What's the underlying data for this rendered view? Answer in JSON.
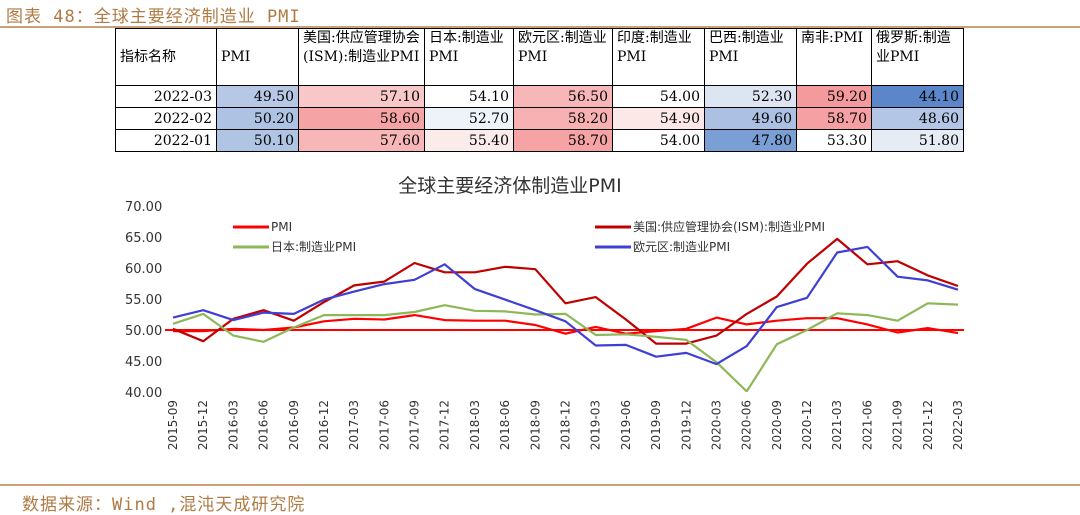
{
  "figure": {
    "title": "图表 48：全球主要经济制造业 PMI",
    "source": "数据来源：Wind ,混沌天成研究院"
  },
  "table": {
    "headers": [
      "指标名称",
      "PMI",
      "美国:供应管理协会(ISM):制造业PMI",
      "日本:制造业PMI",
      "欧元区:制造业PMI",
      "印度:制造业PMI",
      "巴西:制造业PMI",
      "南非:PMI",
      "俄罗斯:制造业PMI"
    ],
    "rows": [
      {
        "date": "2022-03",
        "values": [
          "49.50",
          "57.10",
          "54.10",
          "56.50",
          "54.00",
          "52.30",
          "59.20",
          "44.10"
        ],
        "colors": [
          "#b6c8e6",
          "#f8c7c7",
          "#ffffff",
          "#f7b7b9",
          "#ffffff",
          "#dde5f2",
          "#f59a9c",
          "#5b86c9"
        ]
      },
      {
        "date": "2022-02",
        "values": [
          "50.20",
          "58.60",
          "52.70",
          "58.20",
          "54.90",
          "49.60",
          "58.70",
          "48.60"
        ],
        "colors": [
          "#aec3e3",
          "#f5a3a5",
          "#eef2f9",
          "#f7b1b3",
          "#fde8e8",
          "#abc0e2",
          "#f5a0a3",
          "#b3c6e5"
        ]
      },
      {
        "date": "2022-01",
        "values": [
          "50.10",
          "57.60",
          "55.40",
          "58.70",
          "54.00",
          "47.80",
          "53.30",
          "51.80"
        ],
        "colors": [
          "#b0c4e4",
          "#f7b7b9",
          "#fcebeb",
          "#f5a3a5",
          "#ffffff",
          "#7a9fd4",
          "#ffffff",
          "#e6ecf6"
        ]
      }
    ]
  },
  "chart_data": {
    "type": "line",
    "title": "全球主要经济体制造业PMI",
    "ylim": [
      40,
      70
    ],
    "yticks": [
      "70.00",
      "65.00",
      "60.00",
      "55.00",
      "50.00",
      "45.00",
      "40.00"
    ],
    "x": [
      "2015-09",
      "2015-12",
      "2016-03",
      "2016-06",
      "2016-09",
      "2016-12",
      "2017-03",
      "2017-06",
      "2017-09",
      "2017-12",
      "2018-03",
      "2018-06",
      "2018-09",
      "2018-12",
      "2019-03",
      "2019-06",
      "2019-09",
      "2019-12",
      "2020-03",
      "2020-06",
      "2020-09",
      "2020-12",
      "2021-03",
      "2021-06",
      "2021-09",
      "2021-12",
      "2022-03"
    ],
    "reference_line": 50,
    "legend_placement": "top",
    "series": [
      {
        "name": "PMI",
        "color": "#ff0000",
        "width": 2.2,
        "values": [
          49.8,
          49.8,
          50.2,
          50.0,
          50.4,
          51.4,
          51.8,
          51.7,
          52.4,
          51.6,
          51.5,
          51.5,
          50.8,
          49.4,
          50.5,
          49.4,
          49.8,
          50.2,
          52.0,
          50.9,
          51.5,
          51.9,
          51.9,
          50.9,
          49.6,
          50.3,
          49.5
        ]
      },
      {
        "name": "美国:供应管理协会(ISM):制造业PMI",
        "color": "#c00000",
        "width": 2.2,
        "values": [
          50.2,
          48.2,
          51.8,
          53.2,
          51.5,
          54.5,
          57.2,
          57.8,
          60.8,
          59.3,
          59.3,
          60.2,
          59.8,
          54.3,
          55.3,
          51.7,
          47.8,
          47.8,
          49.1,
          52.6,
          55.4,
          60.7,
          64.7,
          60.6,
          61.1,
          58.8,
          57.1
        ]
      },
      {
        "name": "日本:制造业PMI",
        "color": "#8db759",
        "width": 2.2,
        "values": [
          51.0,
          52.6,
          49.1,
          48.1,
          50.4,
          52.4,
          52.4,
          52.4,
          52.9,
          54.0,
          53.1,
          53.0,
          52.5,
          52.6,
          49.2,
          49.3,
          48.9,
          48.4,
          44.8,
          40.1,
          47.7,
          50.0,
          52.7,
          52.4,
          51.5,
          54.3,
          54.1
        ]
      },
      {
        "name": "欧元区:制造业PMI",
        "color": "#3f3fd4",
        "width": 2.2,
        "values": [
          52.0,
          53.2,
          51.6,
          52.8,
          52.6,
          54.9,
          56.2,
          57.4,
          58.1,
          60.6,
          56.6,
          54.9,
          53.2,
          51.4,
          47.5,
          47.6,
          45.7,
          46.3,
          44.5,
          47.4,
          53.7,
          55.2,
          62.5,
          63.4,
          58.6,
          58.0,
          56.5
        ]
      }
    ]
  }
}
